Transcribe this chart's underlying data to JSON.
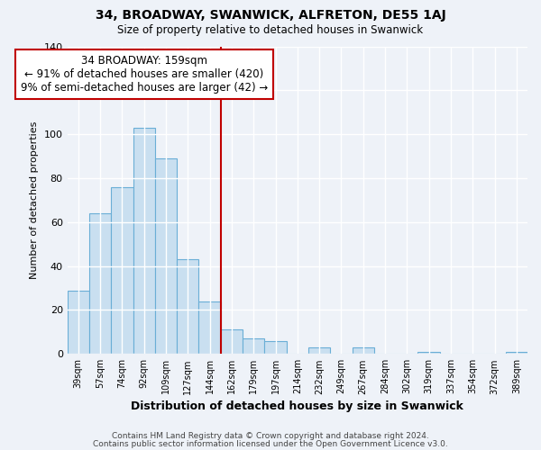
{
  "title": "34, BROADWAY, SWANWICK, ALFRETON, DE55 1AJ",
  "subtitle": "Size of property relative to detached houses in Swanwick",
  "xlabel": "Distribution of detached houses by size in Swanwick",
  "ylabel": "Number of detached properties",
  "categories": [
    "39sqm",
    "57sqm",
    "74sqm",
    "92sqm",
    "109sqm",
    "127sqm",
    "144sqm",
    "162sqm",
    "179sqm",
    "197sqm",
    "214sqm",
    "232sqm",
    "249sqm",
    "267sqm",
    "284sqm",
    "302sqm",
    "319sqm",
    "337sqm",
    "354sqm",
    "372sqm",
    "389sqm"
  ],
  "values": [
    29,
    64,
    76,
    103,
    89,
    43,
    24,
    11,
    7,
    6,
    0,
    3,
    0,
    3,
    0,
    0,
    1,
    0,
    0,
    0,
    1
  ],
  "bar_color": "#c9dff0",
  "bar_edge_color": "#6aaed6",
  "vline_x_index": 7,
  "vline_color": "#c00000",
  "annotation_title": "34 BROADWAY: 159sqm",
  "annotation_line1": "← 91% of detached houses are smaller (420)",
  "annotation_line2": "9% of semi-detached houses are larger (42) →",
  "annotation_box_color": "#ffffff",
  "annotation_box_edge_color": "#c00000",
  "ylim": [
    0,
    140
  ],
  "footer1": "Contains HM Land Registry data © Crown copyright and database right 2024.",
  "footer2": "Contains public sector information licensed under the Open Government Licence v3.0.",
  "background_color": "#eef2f8"
}
